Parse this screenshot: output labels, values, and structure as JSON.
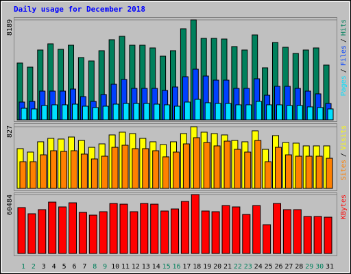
{
  "chart_data": [
    {
      "type": "bar",
      "title": "Daily usage for December 2018",
      "ylim": [
        0,
        8189
      ],
      "yticks": [
        8189
      ],
      "legend_separator": "/",
      "series": [
        {
          "name": "Hits",
          "color": "#00805c",
          "values": [
            4656,
            4320,
            5722,
            6227,
            5778,
            6115,
            5105,
            4825,
            5666,
            6564,
            6844,
            6115,
            6115,
            5891,
            5217,
            5666,
            7461,
            8189,
            6676,
            6676,
            6620,
            6003,
            5722,
            6956,
            4264,
            6339,
            5947,
            5442,
            5722,
            5891,
            4488
          ]
        },
        {
          "name": "Files",
          "color": "#0040ff",
          "values": [
            1459,
            1515,
            2356,
            2356,
            2356,
            2525,
            1907,
            1515,
            2076,
            2917,
            3310,
            2581,
            2581,
            2581,
            2412,
            2693,
            3534,
            4151,
            3590,
            3254,
            3254,
            2581,
            2581,
            3366,
            2020,
            2749,
            2749,
            2581,
            2356,
            2132,
            1346
          ]
        },
        {
          "name": "Pages",
          "color": "#00e0ff",
          "values": [
            954,
            898,
            1178,
            1234,
            1234,
            1290,
            1122,
            1010,
            1122,
            1290,
            1346,
            1346,
            1346,
            1290,
            1234,
            1122,
            1459,
            1683,
            1403,
            1346,
            1346,
            1234,
            1234,
            1515,
            1234,
            1234,
            1178,
            1178,
            1066,
            1010,
            898
          ]
        }
      ]
    },
    {
      "type": "bar",
      "ylim": [
        0,
        827
      ],
      "yticks": [
        827
      ],
      "legend_separator": "/",
      "series": [
        {
          "name": "Visits",
          "color": "#ffff00",
          "values": [
            533,
            487,
            625,
            671,
            662,
            689,
            643,
            551,
            597,
            717,
            754,
            735,
            671,
            625,
            588,
            625,
            735,
            827,
            754,
            735,
            717,
            643,
            625,
            772,
            524,
            708,
            616,
            607,
            570,
            570,
            570
          ]
        },
        {
          "name": "Sites",
          "color": "#ff8000",
          "values": [
            358,
            358,
            450,
            505,
            496,
            505,
            460,
            395,
            432,
            551,
            579,
            533,
            533,
            505,
            423,
            487,
            597,
            680,
            616,
            570,
            634,
            524,
            487,
            643,
            358,
            551,
            450,
            432,
            432,
            432,
            404
          ]
        }
      ]
    },
    {
      "type": "bar",
      "ylim": [
        0,
        60484
      ],
      "yticks": [
        60484
      ],
      "categories": [
        "1",
        "2",
        "3",
        "4",
        "5",
        "6",
        "7",
        "8",
        "9",
        "10",
        "11",
        "12",
        "13",
        "14",
        "15",
        "16",
        "17",
        "18",
        "19",
        "20",
        "21",
        "22",
        "23",
        "24",
        "25",
        "26",
        "27",
        "28",
        "29",
        "30",
        "31"
      ],
      "category_colors": [
        "#00805c",
        "#00805c",
        "#000000",
        "#000000",
        "#000000",
        "#000000",
        "#000000",
        "#00805c",
        "#00805c",
        "#000000",
        "#000000",
        "#000000",
        "#000000",
        "#000000",
        "#00805c",
        "#00805c",
        "#000000",
        "#000000",
        "#000000",
        "#000000",
        "#000000",
        "#00805c",
        "#00805c",
        "#000000",
        "#000000",
        "#000000",
        "#000000",
        "#000000",
        "#00805c",
        "#00805c",
        "#000000"
      ],
      "series": [
        {
          "name": "KBytes",
          "color": "#ff0000",
          "values": [
            47101,
            40774,
            44992,
            52725,
            47804,
            52022,
            42180,
            39368,
            42883,
            51319,
            50616,
            42883,
            51319,
            50616,
            43586,
            45695,
            53428,
            60484,
            43586,
            42883,
            49210,
            47804,
            40071,
            49210,
            29526,
            51319,
            44992,
            44992,
            37962,
            37962,
            37259
          ]
        }
      ]
    }
  ]
}
